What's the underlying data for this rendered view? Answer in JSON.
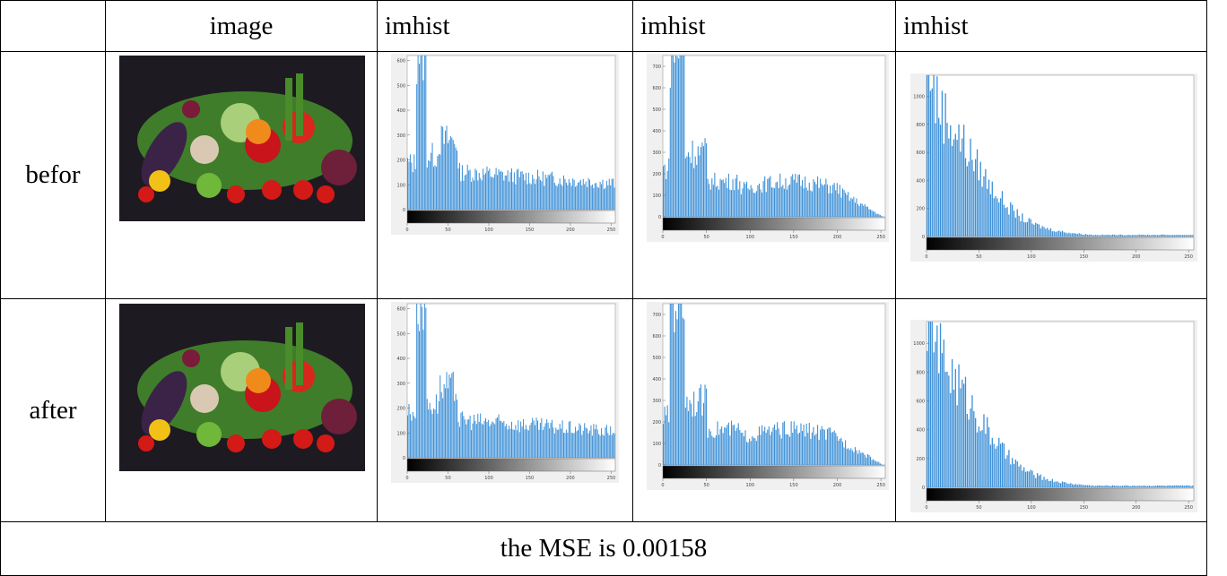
{
  "table": {
    "header": [
      "image",
      "imhist",
      "imhist",
      "imhist"
    ],
    "rows": [
      "befor",
      "after"
    ],
    "footer": "the MSE is 0.00158"
  },
  "histograms": [
    {
      "yticks": [
        0,
        100,
        200,
        300,
        400,
        500,
        600
      ],
      "ylim": [
        0,
        620
      ],
      "xticks": [
        0,
        50,
        100,
        150,
        200,
        250
      ],
      "xlim": [
        0,
        255
      ]
    },
    {
      "yticks": [
        0,
        100,
        200,
        300,
        400,
        500,
        600,
        700
      ],
      "ylim": [
        0,
        750
      ],
      "xticks": [
        0,
        50,
        100,
        150,
        200,
        250
      ],
      "xlim": [
        0,
        255
      ]
    },
    {
      "yticks": [
        0,
        200,
        400,
        600,
        800,
        1000
      ],
      "ylim": [
        0,
        1150
      ],
      "xticks": [
        0,
        50,
        100,
        150,
        200,
        250
      ],
      "xlim": [
        0,
        255
      ]
    }
  ]
}
